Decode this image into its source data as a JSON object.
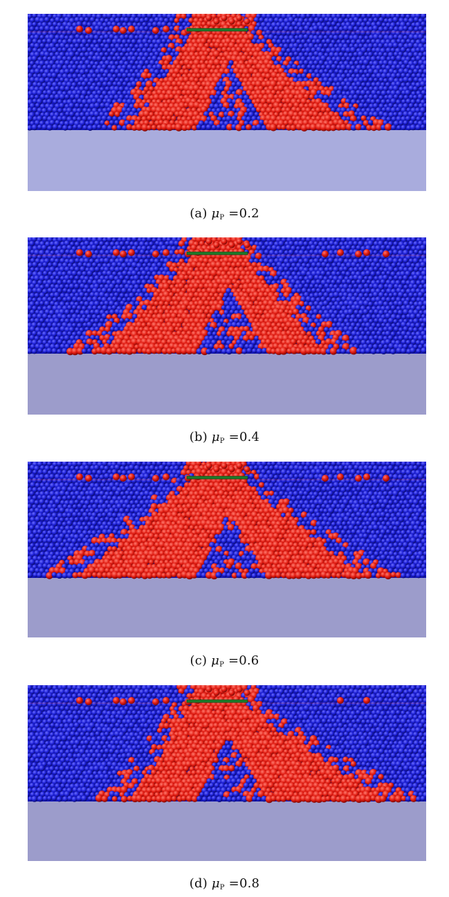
{
  "figure": {
    "background_color": "#ffffff",
    "particle_colors": {
      "stationary": "#1c1fd6",
      "mobilized": "#e01a10",
      "footing": "#1f7a2a",
      "base": "#a9acdd"
    },
    "panels": [
      {
        "id": "a",
        "label": "(a)",
        "symbol": "μ",
        "subscript": "P",
        "equals": "=",
        "value": "0.2",
        "base_color": "#a9acdd"
      },
      {
        "id": "b",
        "label": "(b)",
        "symbol": "μ",
        "subscript": "P",
        "equals": "=",
        "value": "0.4",
        "base_color": "#9c9ccb"
      },
      {
        "id": "c",
        "label": "(c)",
        "symbol": "μ",
        "subscript": "P",
        "equals": "=",
        "value": "0.6",
        "base_color": "#9c9ccb"
      },
      {
        "id": "d",
        "label": "(d)",
        "symbol": "μ",
        "subscript": "P",
        "equals": "=",
        "value": "0.8",
        "base_color": "#9c9ccb"
      }
    ]
  }
}
